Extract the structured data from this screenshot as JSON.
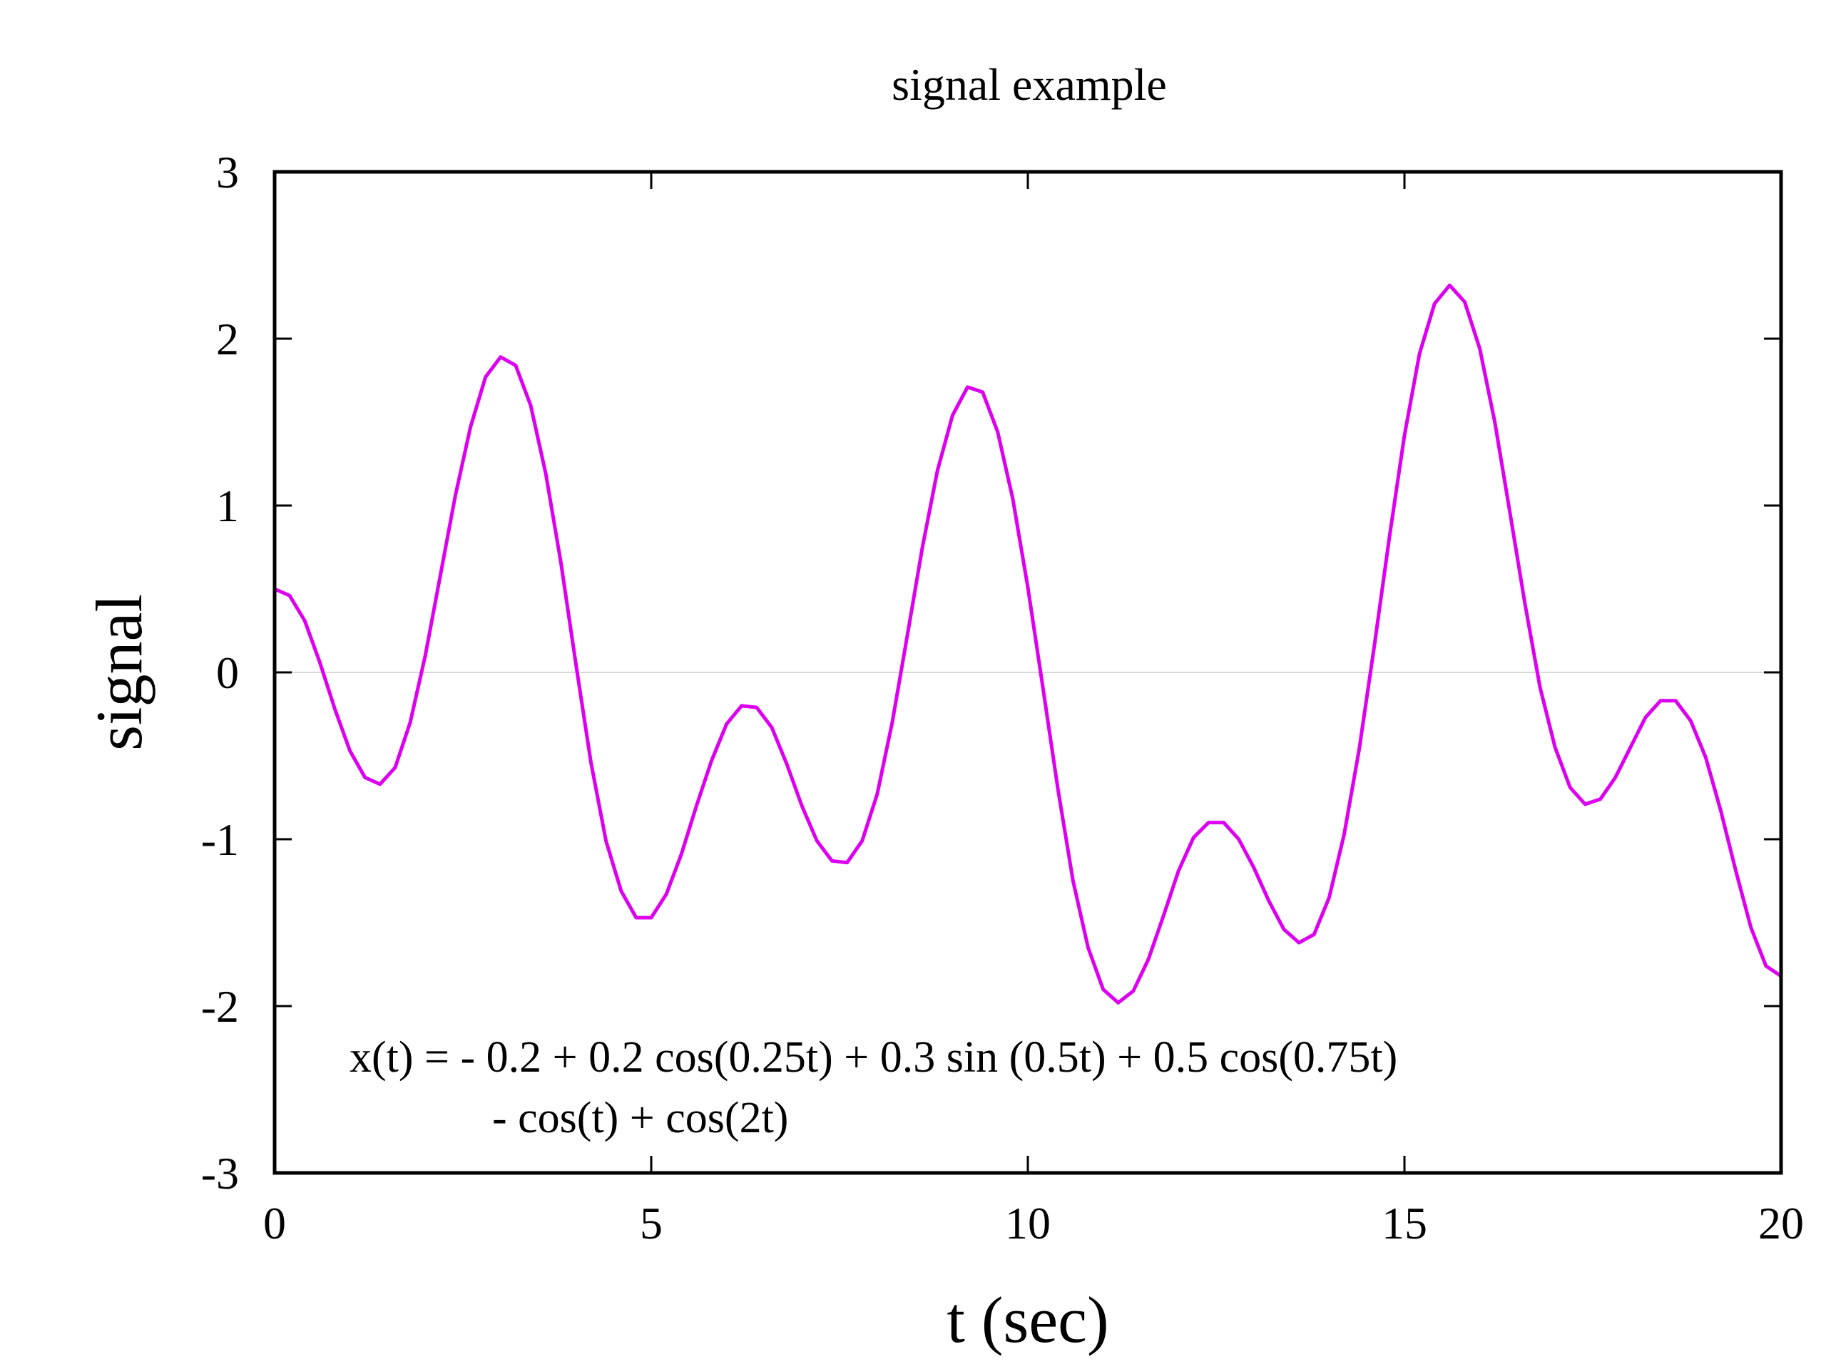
{
  "chart_data": {
    "type": "line",
    "title": "signal example",
    "xlabel": "t (sec)",
    "ylabel": "signal",
    "xlim": [
      0,
      20
    ],
    "ylim": [
      -3,
      3
    ],
    "xticks": [
      0,
      5,
      10,
      15,
      20
    ],
    "yticks": [
      -3,
      -2,
      -1,
      0,
      1,
      2,
      3
    ],
    "xtick_labels": [
      "0",
      "5",
      "10",
      "15",
      "20"
    ],
    "ytick_labels": [
      "-3",
      "-2",
      "-1",
      "0",
      "1",
      "2",
      "3"
    ],
    "grid": false,
    "zero_line": true,
    "legend": "none",
    "annotation": {
      "line1": "x(t) = - 0.2 + 0.2 cos(0.25t) + 0.3 sin (0.5t) + 0.5 cos(0.75t)",
      "line2": "- cos(t) + cos(2t)"
    },
    "series": [
      {
        "color": "#dd00f0",
        "x": [
          0,
          0.2,
          0.4,
          0.6,
          0.8,
          1.0,
          1.2,
          1.4,
          1.6,
          1.8,
          2.0,
          2.2,
          2.4,
          2.6,
          2.8,
          3.0,
          3.2,
          3.4,
          3.6,
          3.8,
          4.0,
          4.2,
          4.4,
          4.6,
          4.8,
          5.0,
          5.2,
          5.4,
          5.6,
          5.8,
          6.0,
          6.2,
          6.4,
          6.6,
          6.8,
          7.0,
          7.2,
          7.4,
          7.6,
          7.8,
          8.0,
          8.2,
          8.4,
          8.6,
          8.8,
          9.0,
          9.2,
          9.4,
          9.6,
          9.8,
          10.0,
          10.2,
          10.4,
          10.6,
          10.8,
          11.0,
          11.2,
          11.4,
          11.6,
          11.8,
          12.0,
          12.2,
          12.4,
          12.6,
          12.8,
          13.0,
          13.2,
          13.4,
          13.6,
          13.8,
          14.0,
          14.2,
          14.4,
          14.6,
          14.8,
          15.0,
          15.2,
          15.4,
          15.6,
          15.8,
          16.0,
          16.2,
          16.4,
          16.6,
          16.8,
          17.0,
          17.2,
          17.4,
          17.6,
          17.8,
          18.0,
          18.2,
          18.4,
          18.6,
          18.8,
          19.0,
          19.2,
          19.4,
          19.6,
          19.8,
          20.0
        ],
        "y": [
          0.5,
          0.46,
          0.31,
          0.06,
          -0.22,
          -0.47,
          -0.63,
          -0.67,
          -0.57,
          -0.3,
          0.1,
          0.58,
          1.06,
          1.47,
          1.77,
          1.89,
          1.84,
          1.6,
          1.19,
          0.66,
          0.05,
          -0.54,
          -1.01,
          -1.31,
          -1.47,
          -1.47,
          -1.33,
          -1.09,
          -0.8,
          -0.53,
          -0.31,
          -0.2,
          -0.21,
          -0.33,
          -0.55,
          -0.8,
          -1.01,
          -1.13,
          -1.14,
          -1.01,
          -0.73,
          -0.3,
          0.22,
          0.75,
          1.21,
          1.54,
          1.71,
          1.68,
          1.44,
          1.04,
          0.51,
          -0.09,
          -0.7,
          -1.25,
          -1.65,
          -1.9,
          -1.98,
          -1.91,
          -1.72,
          -1.46,
          -1.19,
          -0.99,
          -0.9,
          -0.9,
          -1.0,
          -1.17,
          -1.37,
          -1.54,
          -1.62,
          -1.57,
          -1.35,
          -0.97,
          -0.46,
          0.16,
          0.81,
          1.42,
          1.91,
          2.21,
          2.32,
          2.22,
          1.94,
          1.5,
          0.96,
          0.41,
          -0.09,
          -0.45,
          -0.69,
          -0.79,
          -0.76,
          -0.63,
          -0.45,
          -0.27,
          -0.17,
          -0.17,
          -0.29,
          -0.51,
          -0.83,
          -1.19,
          -1.53,
          -1.76,
          -1.82
        ]
      }
    ]
  }
}
